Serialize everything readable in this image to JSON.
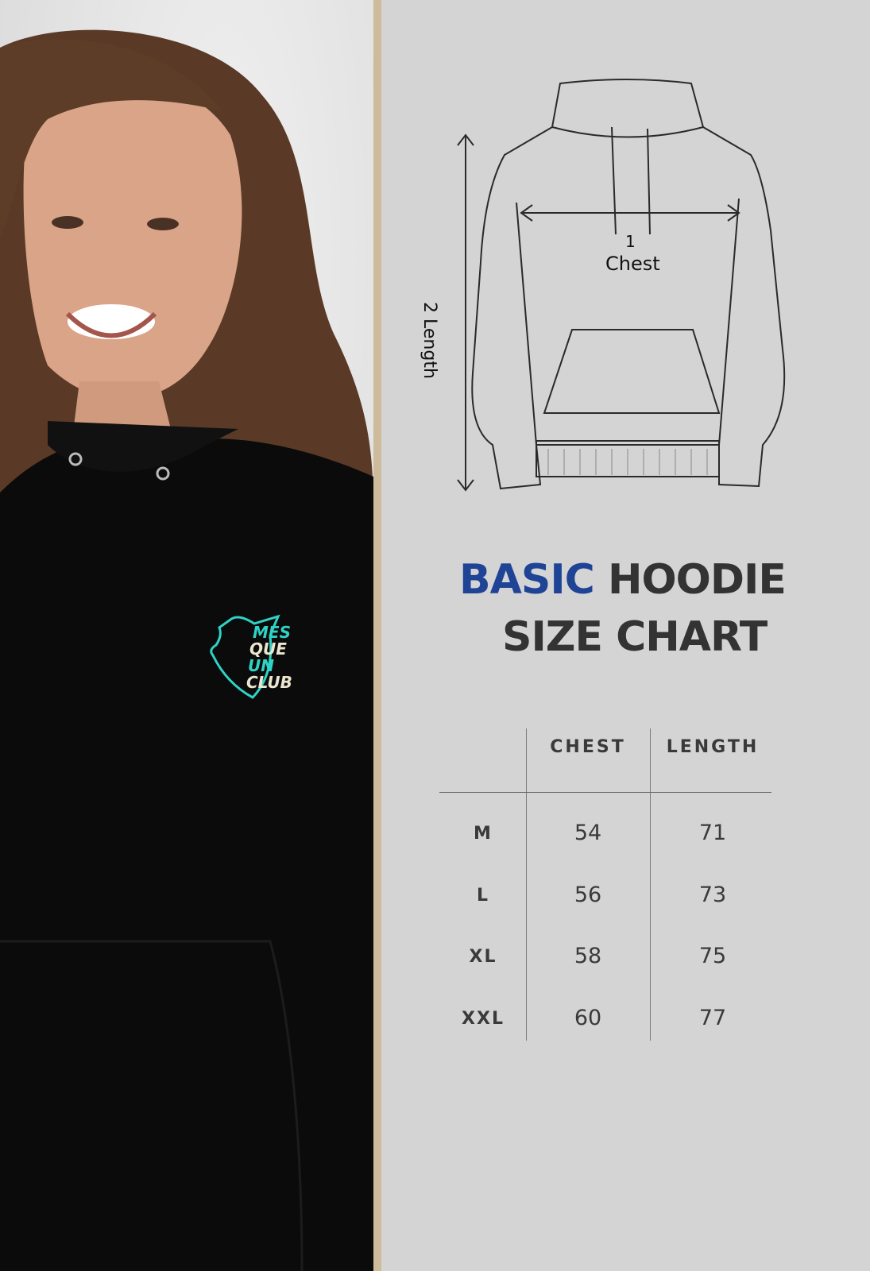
{
  "photo": {
    "logo_lines": [
      "MES",
      "QUE",
      "UN",
      "CLUB"
    ],
    "logo_colors": {
      "accent": "#2ed3c6",
      "cream": "#ece5cf"
    }
  },
  "diagram": {
    "chest_number": "1",
    "chest_label": "Chest",
    "length_number": "2",
    "length_label": "Length"
  },
  "title": {
    "highlight": "BASIC",
    "rest_line1": "HOODIE",
    "line2": "SIZE CHART",
    "highlight_color": "#1f4496"
  },
  "size_table": {
    "columns": [
      "",
      "CHEST",
      "LENGTH"
    ],
    "rows": [
      {
        "size": "M",
        "chest": "54",
        "length": "71"
      },
      {
        "size": "L",
        "chest": "56",
        "length": "73"
      },
      {
        "size": "XL",
        "chest": "58",
        "length": "75"
      },
      {
        "size": "XXL",
        "chest": "60",
        "length": "77"
      }
    ]
  }
}
